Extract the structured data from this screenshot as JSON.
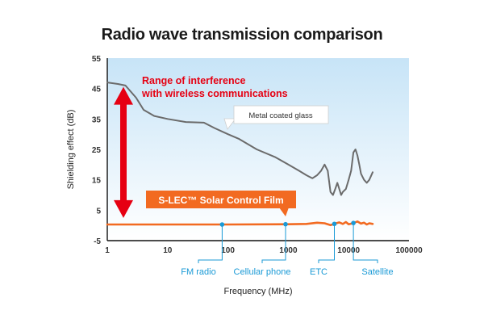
{
  "chart_data": {
    "type": "line",
    "title": "Radio wave transmission comparison",
    "xlabel": "Frequency (MHz)",
    "ylabel": "Shielding effect (dB)",
    "x_scale": "log",
    "xlim": [
      1,
      100000
    ],
    "ylim": [
      -5,
      55
    ],
    "x_ticks": [
      "1",
      "10",
      "100",
      "1000",
      "10000",
      "100000"
    ],
    "x_tick_values": [
      1,
      10,
      100,
      1000,
      10000,
      100000
    ],
    "y_ticks": [
      "55",
      "45",
      "35",
      "25",
      "15",
      "5",
      "-5"
    ],
    "y_tick_values": [
      55,
      45,
      35,
      25,
      15,
      5,
      -5
    ],
    "grid": false,
    "series": [
      {
        "name": "Metal coated glass",
        "color": "#6b6b6b",
        "x": [
          1,
          1.5,
          2,
          3,
          4,
          6,
          10,
          20,
          40,
          60,
          100,
          150,
          300,
          600,
          1000,
          1500,
          2000,
          2500,
          3000,
          3500,
          4000,
          4500,
          5000,
          5500,
          6000,
          6500,
          7000,
          7500,
          8000,
          9000,
          10000,
          11000,
          12000,
          13000,
          14000,
          15000,
          16000,
          17000,
          18000,
          20000,
          22000,
          25000
        ],
        "y": [
          47,
          46.5,
          46,
          42,
          38,
          36,
          35,
          34,
          33.8,
          32,
          30,
          28.5,
          25,
          22.5,
          20,
          18,
          16.5,
          15.5,
          16.5,
          18,
          20,
          18,
          11,
          10,
          12,
          14,
          12,
          10,
          11,
          12,
          15,
          18,
          24,
          25,
          23,
          20,
          17,
          16,
          15,
          14,
          15,
          17.5
        ]
      },
      {
        "name": "S-LEC™ Solar Control Film",
        "color": "#f26a21",
        "x": [
          1,
          10,
          100,
          1000,
          2000,
          3000,
          4000,
          5000,
          6000,
          7000,
          8000,
          9000,
          10000,
          12000,
          14000,
          16000,
          18000,
          20000,
          22000,
          25000
        ],
        "y": [
          0.3,
          0.3,
          0.3,
          0.4,
          0.5,
          0.9,
          0.7,
          0.1,
          0.6,
          1.0,
          0.5,
          1.1,
          0.4,
          0.8,
          1.3,
          0.6,
          0.9,
          0.3,
          0.7,
          0.5
        ]
      }
    ],
    "categories": [
      {
        "label": "FM radio",
        "x": 80
      },
      {
        "label": "Cellular phone",
        "x": 900
      },
      {
        "label": "ETC",
        "x": 5800
      },
      {
        "label": "Satellite",
        "x": 12000
      }
    ],
    "annotations": {
      "range_line1": "Range of interference",
      "range_line2": "with wireless communications",
      "range_from": 45,
      "range_to": 3,
      "callout": "Metal coated glass",
      "film_label": "S-LEC™ Solar Control Film"
    },
    "colors": {
      "metal_line": "#6b6b6b",
      "film_line": "#f26a21",
      "film_box": "#f26a21",
      "arrow": "#e60012",
      "markers": "#1a9ad6",
      "plot_bg_top": "#c7e4f7",
      "plot_bg_bottom": "#ffffff"
    }
  }
}
